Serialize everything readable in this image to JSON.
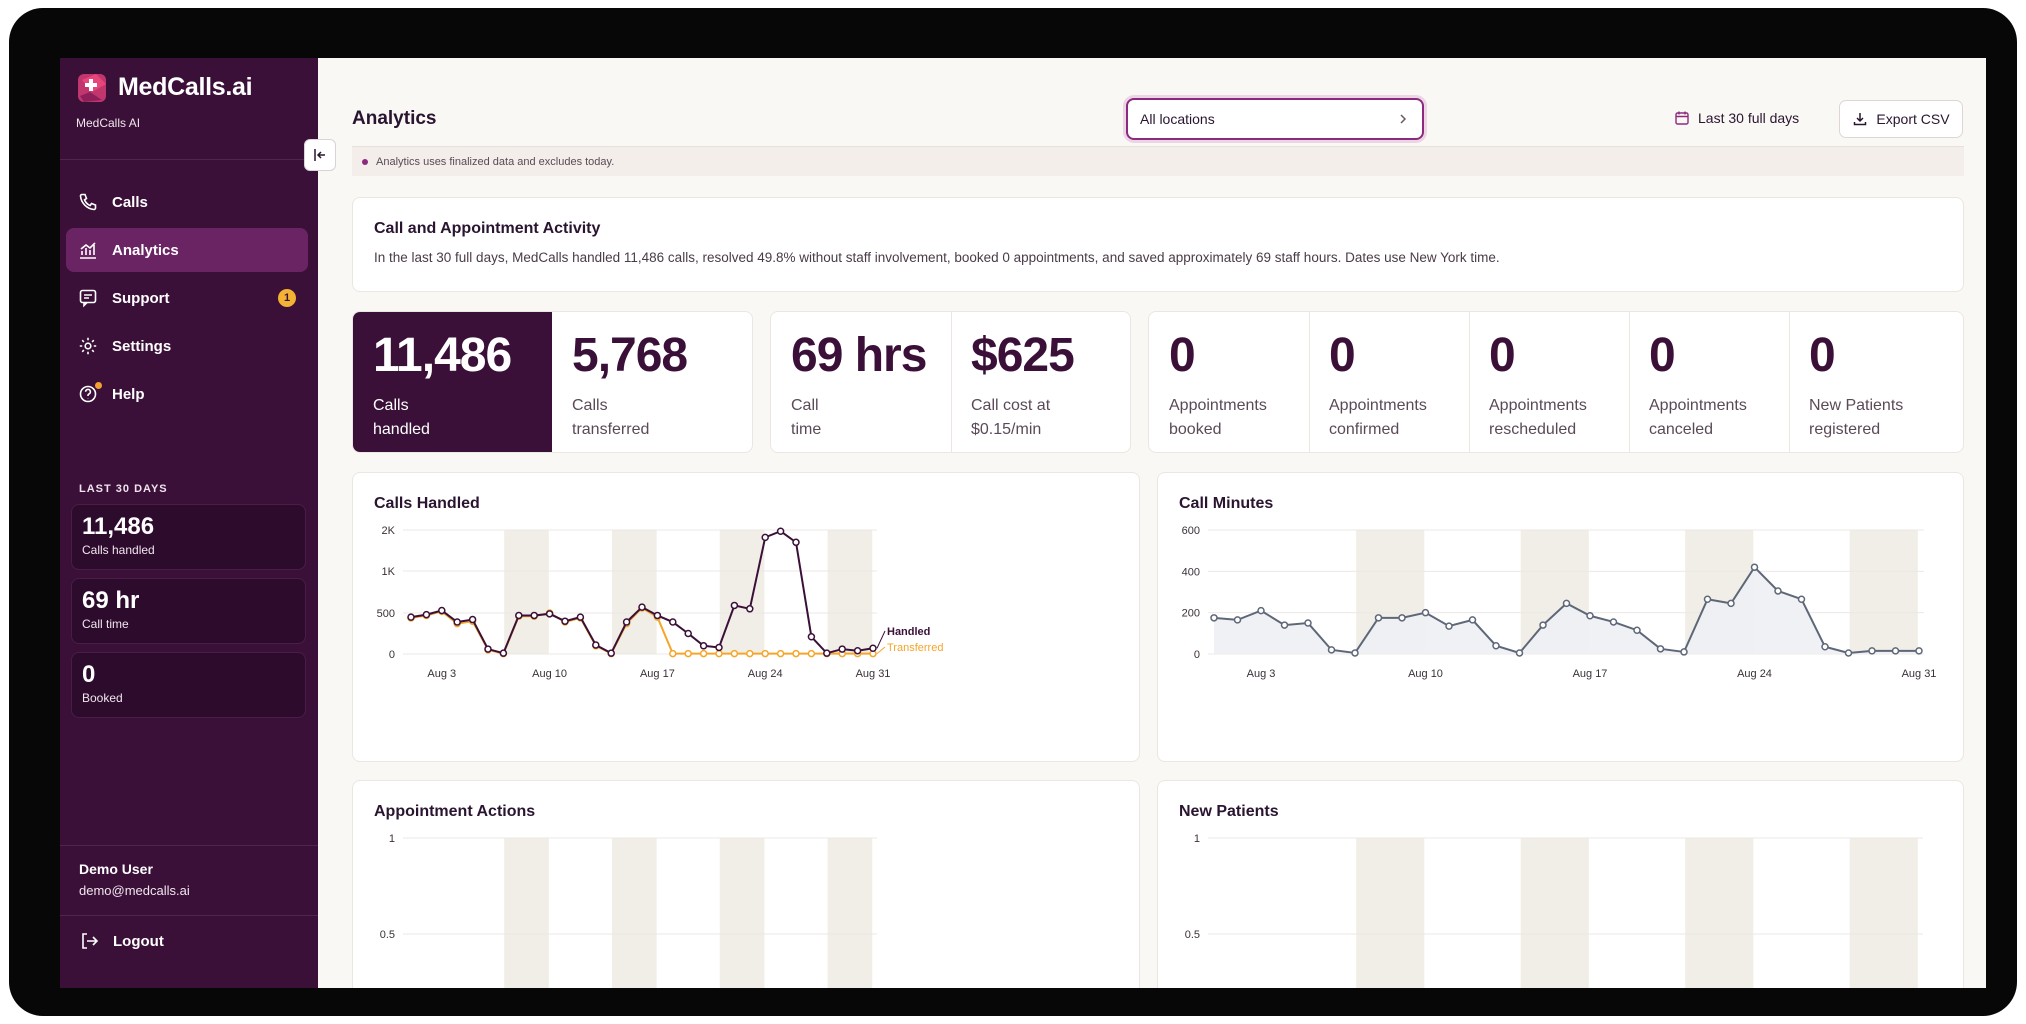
{
  "app": {
    "name": "MedCalls.ai",
    "org": "MedCalls AI"
  },
  "sidebar": {
    "items": [
      {
        "label": "Calls",
        "icon": "phone-icon"
      },
      {
        "label": "Analytics",
        "icon": "analytics-icon",
        "active": true
      },
      {
        "label": "Support",
        "icon": "message-icon",
        "badge": "1"
      },
      {
        "label": "Settings",
        "icon": "gear-icon"
      },
      {
        "label": "Help",
        "icon": "help-icon"
      }
    ],
    "section_title": "LAST 30 DAYS",
    "stats": [
      {
        "value": "11,486",
        "label": "Calls handled"
      },
      {
        "value": "69 hr",
        "label": "Call time"
      },
      {
        "value": "0",
        "label": "Booked"
      }
    ],
    "user": {
      "name": "Demo User",
      "email": "demo@medcalls.ai"
    },
    "logout": "Logout"
  },
  "header": {
    "title": "Analytics",
    "location_select": "All locations",
    "date_range": "Last 30 full days",
    "export": "Export CSV"
  },
  "notice": "Analytics uses finalized data and excludes today.",
  "activity": {
    "title": "Call and Appointment Activity",
    "description": "In the last 30 full days, MedCalls handled 11,486 calls, resolved 49.8% without staff involvement, booked 0 appointments, and saved approximately 69 staff hours. Dates use New York time."
  },
  "metrics": {
    "calls_handled": {
      "value": "11,486",
      "l1": "Calls",
      "l2": "handled"
    },
    "calls_transferred": {
      "value": "5,768",
      "l1": "Calls",
      "l2": "transferred"
    },
    "call_time": {
      "value": "69 hrs",
      "l1": "Call",
      "l2": "time"
    },
    "call_cost": {
      "value": "$625",
      "l1": "Call cost at",
      "l2": "$0.15/min"
    },
    "appointments_booked": {
      "value": "0",
      "l1": "Appointments",
      "l2": "booked"
    },
    "appointments_confirmed": {
      "value": "0",
      "l1": "Appointments",
      "l2": "confirmed"
    },
    "appointments_rescheduled": {
      "value": "0",
      "l1": "Appointments",
      "l2": "rescheduled"
    },
    "appointments_canceled": {
      "value": "0",
      "l1": "Appointments",
      "l2": "canceled"
    },
    "new_patients": {
      "value": "0",
      "l1": "New Patients",
      "l2": "registered"
    }
  },
  "colors": {
    "primary": "#3a1038",
    "accent": "#8c2a7f",
    "transferred": "#f5a52a",
    "minutes": "#5e6778",
    "badge": "#f2b233"
  },
  "chart_data": [
    {
      "type": "line",
      "title": "Calls Handled",
      "x": [
        "Aug 1",
        "Aug 2",
        "Aug 3",
        "Aug 4",
        "Aug 5",
        "Aug 6",
        "Aug 7",
        "Aug 8",
        "Aug 9",
        "Aug 10",
        "Aug 11",
        "Aug 12",
        "Aug 13",
        "Aug 14",
        "Aug 15",
        "Aug 16",
        "Aug 17",
        "Aug 18",
        "Aug 19",
        "Aug 20",
        "Aug 21",
        "Aug 22",
        "Aug 23",
        "Aug 24",
        "Aug 25",
        "Aug 26",
        "Aug 27",
        "Aug 28",
        "Aug 29",
        "Aug 30",
        "Aug 31"
      ],
      "x_tick_labels": [
        "Aug 3",
        "Aug 10",
        "Aug 17",
        "Aug 24",
        "Aug 31"
      ],
      "y_tick_labels": [
        "0",
        "500",
        "1K",
        "2K"
      ],
      "weekend_bands": [
        "Aug 8-9",
        "Aug 15-16",
        "Aug 22-23",
        "Aug 29-30"
      ],
      "series": [
        {
          "name": "Handled",
          "values": [
            450,
            480,
            530,
            390,
            420,
            60,
            10,
            470,
            470,
            490,
            400,
            450,
            110,
            10,
            390,
            570,
            470,
            390,
            250,
            100,
            80,
            590,
            550,
            1820,
            1970,
            1700,
            210,
            10,
            60,
            40,
            70
          ]
        },
        {
          "name": "Transferred",
          "values": [
            440,
            470,
            520,
            370,
            400,
            50,
            5,
            460,
            460,
            500,
            390,
            440,
            100,
            5,
            370,
            560,
            450,
            5,
            5,
            5,
            5,
            5,
            5,
            5,
            5,
            5,
            5,
            5,
            5,
            5,
            5
          ]
        }
      ]
    },
    {
      "type": "area",
      "title": "Call Minutes",
      "x": [
        "Aug 1",
        "Aug 2",
        "Aug 3",
        "Aug 4",
        "Aug 5",
        "Aug 6",
        "Aug 7",
        "Aug 8",
        "Aug 9",
        "Aug 10",
        "Aug 11",
        "Aug 12",
        "Aug 13",
        "Aug 14",
        "Aug 15",
        "Aug 16",
        "Aug 17",
        "Aug 18",
        "Aug 19",
        "Aug 20",
        "Aug 21",
        "Aug 22",
        "Aug 23",
        "Aug 24",
        "Aug 25",
        "Aug 26",
        "Aug 27",
        "Aug 28",
        "Aug 29",
        "Aug 30",
        "Aug 31"
      ],
      "x_tick_labels": [
        "Aug 3",
        "Aug 10",
        "Aug 17",
        "Aug 24",
        "Aug 31"
      ],
      "y_tick_labels": [
        "0",
        "200",
        "400",
        "600"
      ],
      "ylim": [
        0,
        600
      ],
      "weekend_bands": [
        "Aug 8-9",
        "Aug 15-16",
        "Aug 22-23",
        "Aug 29-30"
      ],
      "series": [
        {
          "values": [
            175,
            165,
            210,
            140,
            150,
            20,
            5,
            175,
            175,
            200,
            135,
            165,
            40,
            5,
            140,
            245,
            185,
            155,
            115,
            25,
            10,
            265,
            245,
            420,
            305,
            265,
            35,
            5,
            15,
            15,
            15
          ]
        }
      ]
    },
    {
      "type": "bar",
      "title": "Appointment Actions",
      "y_tick_labels": [
        "1",
        "0.5"
      ]
    },
    {
      "type": "bar",
      "title": "New Patients",
      "y_tick_labels": [
        "1",
        "0.5"
      ]
    }
  ]
}
